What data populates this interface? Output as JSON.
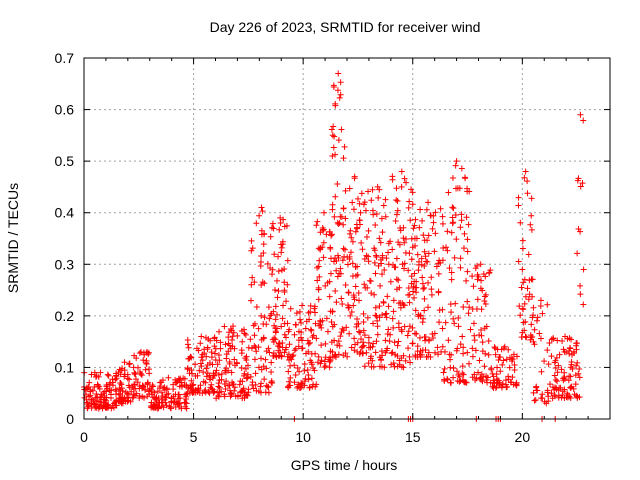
{
  "chart_data": {
    "type": "scatter",
    "title": "Day 226 of 2023, SRMTID for receiver wind",
    "xlabel": "GPS time / hours",
    "ylabel": "SRMTID / TECUs",
    "xlim": [
      0,
      24
    ],
    "ylim": [
      0,
      0.7
    ],
    "xticks": [
      0,
      5,
      10,
      15,
      20
    ],
    "yticks": [
      0,
      0.1,
      0.2,
      0.3,
      0.4,
      0.5,
      0.6,
      0.7
    ],
    "xtick_labels": [
      "0",
      "5",
      "10",
      "15",
      "20"
    ],
    "ytick_labels": [
      "0",
      "0.1",
      "0.2",
      "0.3",
      "0.4",
      "0.5",
      "0.6",
      "0.7"
    ],
    "grid": true,
    "marker": "+",
    "color": "#ff0000",
    "series": [
      {
        "name": "SRMTID",
        "clusters": [
          {
            "x0": 0.0,
            "x1": 1.5,
            "ymin": 0.02,
            "ymax": 0.09,
            "n": 110
          },
          {
            "x0": 1.5,
            "x1": 2.2,
            "ymin": 0.03,
            "ymax": 0.11,
            "n": 50
          },
          {
            "x0": 2.2,
            "x1": 3.0,
            "ymin": 0.04,
            "ymax": 0.13,
            "n": 55
          },
          {
            "x0": 3.0,
            "x1": 4.7,
            "ymin": 0.02,
            "ymax": 0.08,
            "n": 110
          },
          {
            "x0": 4.7,
            "x1": 6.0,
            "ymin": 0.05,
            "ymax": 0.16,
            "n": 90
          },
          {
            "x0": 6.0,
            "x1": 7.6,
            "ymin": 0.04,
            "ymax": 0.18,
            "n": 110
          },
          {
            "x0": 7.6,
            "x1": 8.6,
            "ymin": 0.05,
            "ymax": 0.41,
            "n": 80
          },
          {
            "x0": 8.6,
            "x1": 9.3,
            "ymin": 0.12,
            "ymax": 0.39,
            "n": 70
          },
          {
            "x0": 9.3,
            "x1": 10.6,
            "ymin": 0.06,
            "ymax": 0.22,
            "n": 90
          },
          {
            "x0": 10.6,
            "x1": 11.3,
            "ymin": 0.1,
            "ymax": 0.4,
            "n": 60
          },
          {
            "x0": 11.3,
            "x1": 11.9,
            "ymin": 0.12,
            "ymax": 0.67,
            "n": 70
          },
          {
            "x0": 11.9,
            "x1": 12.8,
            "ymin": 0.12,
            "ymax": 0.47,
            "n": 80
          },
          {
            "x0": 12.8,
            "x1": 14.0,
            "ymin": 0.1,
            "ymax": 0.45,
            "n": 100
          },
          {
            "x0": 14.0,
            "x1": 15.0,
            "ymin": 0.1,
            "ymax": 0.48,
            "n": 90
          },
          {
            "x0": 15.0,
            "x1": 16.4,
            "ymin": 0.12,
            "ymax": 0.42,
            "n": 110
          },
          {
            "x0": 16.4,
            "x1": 17.6,
            "ymin": 0.07,
            "ymax": 0.5,
            "n": 90
          },
          {
            "x0": 17.6,
            "x1": 18.6,
            "ymin": 0.07,
            "ymax": 0.3,
            "n": 60
          },
          {
            "x0": 18.6,
            "x1": 19.8,
            "ymin": 0.06,
            "ymax": 0.14,
            "n": 60
          },
          {
            "x0": 19.8,
            "x1": 20.5,
            "ymin": 0.15,
            "ymax": 0.48,
            "n": 45
          },
          {
            "x0": 20.5,
            "x1": 21.2,
            "ymin": 0.03,
            "ymax": 0.23,
            "n": 30
          },
          {
            "x0": 21.2,
            "x1": 22.7,
            "ymin": 0.04,
            "ymax": 0.16,
            "n": 90
          },
          {
            "x0": 22.5,
            "x1": 22.8,
            "ymin": 0.2,
            "ymax": 0.59,
            "n": 12
          }
        ],
        "zero_points_x": [
          9.6,
          14.8,
          14.9,
          15.0,
          17.9,
          18.8,
          18.9,
          19.0,
          20.9,
          21.5
        ]
      }
    ]
  }
}
